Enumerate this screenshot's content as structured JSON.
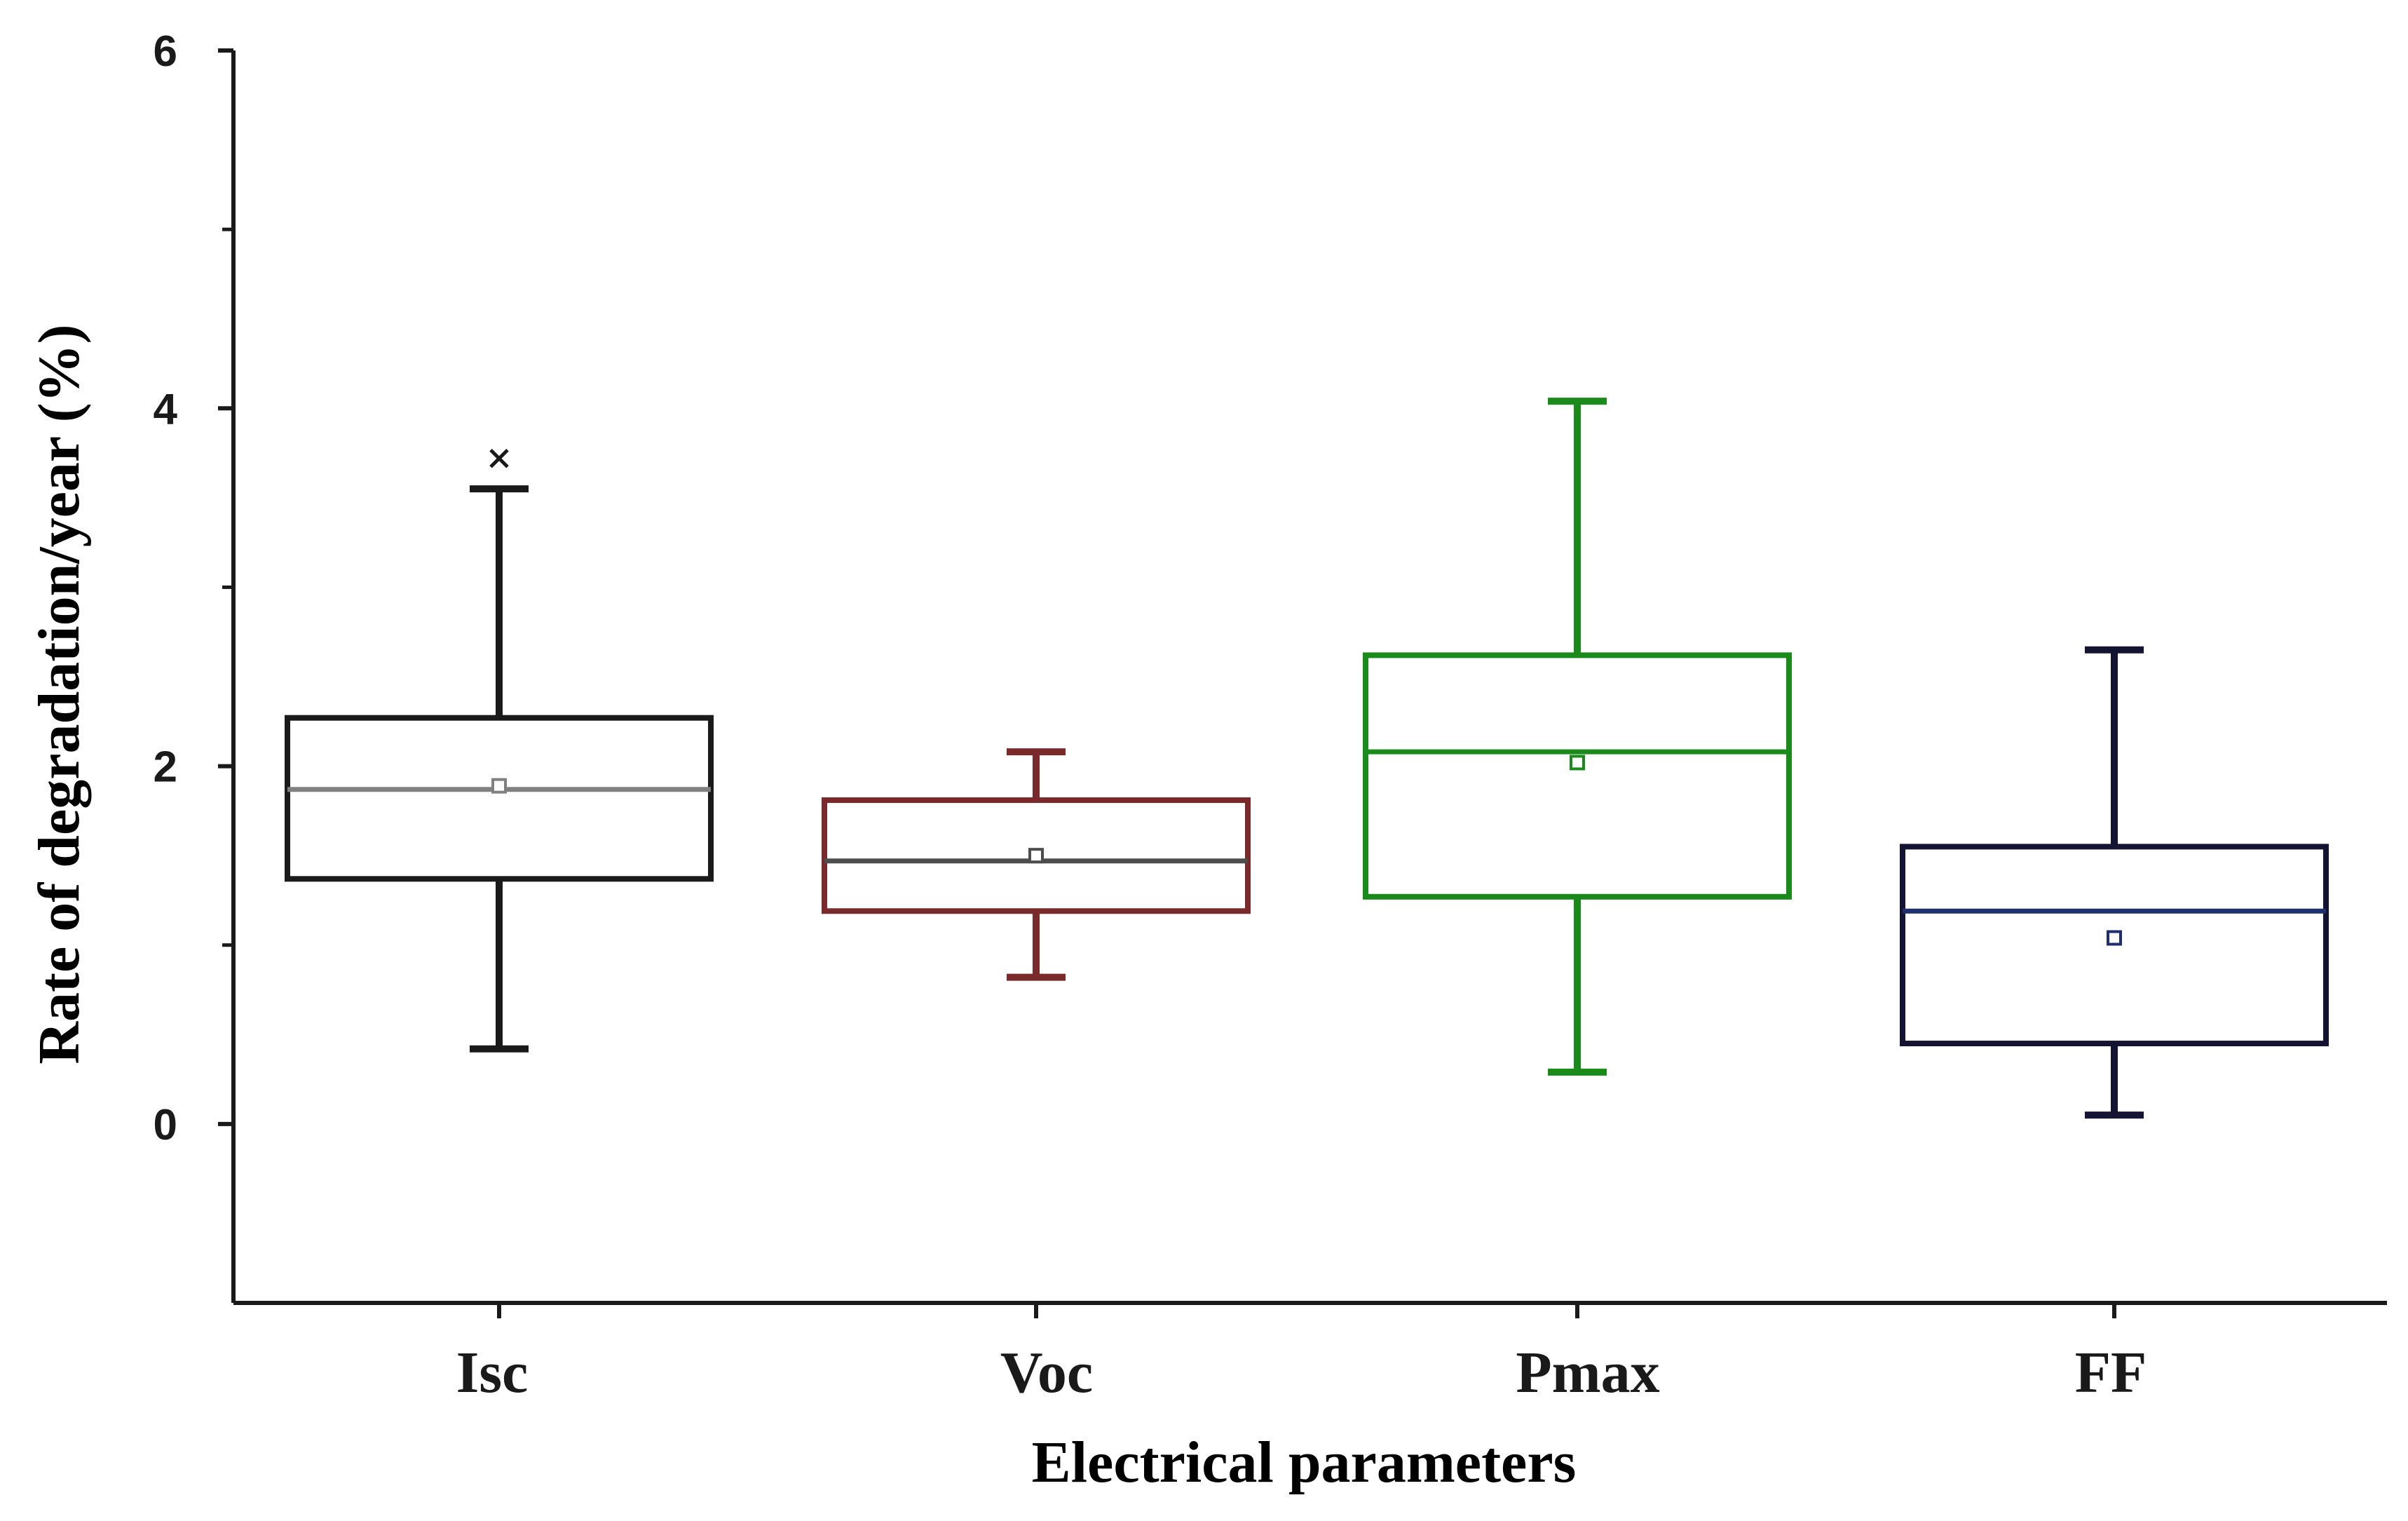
{
  "chart_data": {
    "type": "box",
    "title": "",
    "xlabel": "Electrical parameters",
    "ylabel": "Rate of degradation/year (%)",
    "ylim": [
      -1,
      6
    ],
    "yticks_major": [
      0,
      2,
      4,
      6
    ],
    "yticks_minor": [
      1,
      3,
      5
    ],
    "grid": false,
    "legend": "none",
    "categories": [
      "Isc",
      "Voc",
      "Pmax",
      "FF"
    ],
    "boxes": [
      {
        "name": "Isc",
        "color": "#1a1a1a",
        "median_color": "#808080",
        "whisker_low": 0.42,
        "q1": 1.37,
        "median": 1.87,
        "q3": 2.27,
        "whisker_high": 3.55,
        "mean": 1.89,
        "outliers": [
          3.72
        ]
      },
      {
        "name": "Voc",
        "color": "#7a2a2a",
        "median_color": "#4d4d4d",
        "whisker_low": 0.82,
        "q1": 1.19,
        "median": 1.47,
        "q3": 1.81,
        "whisker_high": 2.08,
        "mean": 1.5,
        "outliers": []
      },
      {
        "name": "Pmax",
        "color": "#1a8a1a",
        "median_color": "#1a8a1a",
        "whisker_low": 0.29,
        "q1": 1.27,
        "median": 2.08,
        "q3": 2.62,
        "whisker_high": 4.04,
        "mean": 2.02,
        "outliers": []
      },
      {
        "name": "FF",
        "color": "#141432",
        "median_color": "#1f2f6e",
        "whisker_low": 0.05,
        "q1": 0.45,
        "median": 1.19,
        "q3": 1.55,
        "whisker_high": 2.65,
        "mean": 1.04,
        "outliers": []
      }
    ]
  }
}
